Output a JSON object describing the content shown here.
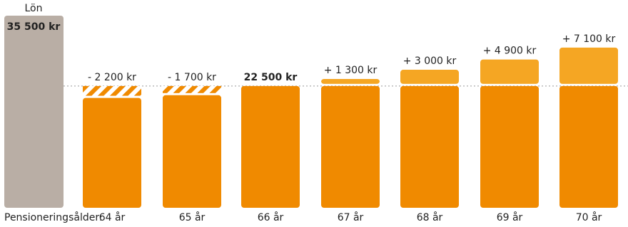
{
  "chart_data": {
    "type": "bar",
    "salary": {
      "label": "Lön",
      "value": 35500,
      "value_label": "35 500 kr",
      "color": "#b9aea5"
    },
    "base": {
      "value": 22500,
      "label": "22 500 kr",
      "color": "#f08a00"
    },
    "x_label": "Pensioneringsålder:",
    "categories": [
      "64 år",
      "65 år",
      "66 år",
      "67 år",
      "68 år",
      "69 år",
      "70 år"
    ],
    "deltas": [
      -2200,
      -1700,
      null,
      1300,
      3000,
      4900,
      7100
    ],
    "value_labels": [
      "- 2 200 kr",
      "- 1 700 kr",
      null,
      "+ 1 300 kr",
      "+ 3 000 kr",
      "+ 4 900 kr",
      "+ 7 100 kr"
    ],
    "increase_color": "#f5a623"
  }
}
